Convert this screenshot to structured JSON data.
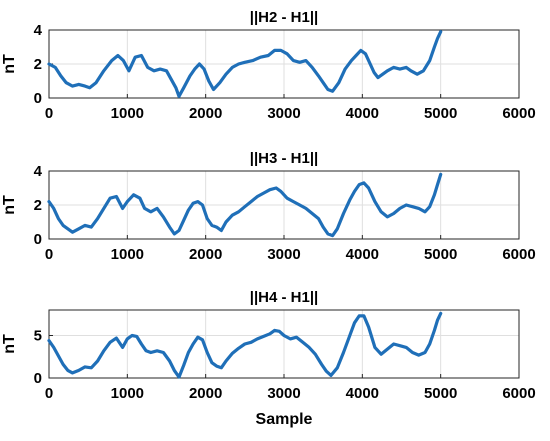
{
  "chart_data": [
    {
      "type": "line",
      "title": "||H2 - H1||",
      "xlabel": "",
      "ylabel": "nT",
      "xlim": [
        0,
        6000
      ],
      "ylim": [
        0,
        4
      ],
      "xticks": [
        0,
        1000,
        2000,
        3000,
        4000,
        5000,
        6000
      ],
      "yticks": [
        0,
        2,
        4
      ],
      "grid": true,
      "color": "#1f6fb8",
      "series": [
        {
          "x": [
            0,
            80,
            150,
            220,
            300,
            380,
            460,
            520,
            600,
            700,
            800,
            880,
            950,
            1020,
            1100,
            1180,
            1260,
            1340,
            1420,
            1500,
            1560,
            1620,
            1660,
            1720,
            1800,
            1860,
            1920,
            1980,
            2040,
            2100,
            2180,
            2260,
            2340,
            2420,
            2500,
            2600,
            2700,
            2800,
            2880,
            2960,
            3040,
            3120,
            3200,
            3280,
            3360,
            3440,
            3500,
            3560,
            3620,
            3700,
            3780,
            3860,
            3920,
            3980,
            4040,
            4100,
            4150,
            4200,
            4260,
            4320,
            4400,
            4480,
            4560,
            4620,
            4700,
            4780,
            4860,
            4920,
            4960,
            5000
          ],
          "y": [
            2.0,
            1.8,
            1.3,
            0.9,
            0.7,
            0.8,
            0.7,
            0.6,
            0.9,
            1.6,
            2.2,
            2.5,
            2.2,
            1.6,
            2.4,
            2.5,
            1.8,
            1.6,
            1.7,
            1.6,
            1.1,
            0.6,
            0.1,
            0.6,
            1.3,
            1.7,
            2.0,
            1.7,
            1.0,
            0.5,
            0.9,
            1.4,
            1.8,
            2.0,
            2.1,
            2.2,
            2.4,
            2.5,
            2.8,
            2.8,
            2.6,
            2.2,
            2.1,
            2.2,
            1.8,
            1.3,
            0.9,
            0.5,
            0.4,
            0.9,
            1.7,
            2.2,
            2.5,
            2.8,
            2.6,
            2.0,
            1.5,
            1.2,
            1.4,
            1.6,
            1.8,
            1.7,
            1.8,
            1.6,
            1.4,
            1.6,
            2.2,
            3.0,
            3.5,
            3.9
          ]
        }
      ]
    },
    {
      "type": "line",
      "title": "||H3 - H1||",
      "xlabel": "",
      "ylabel": "nT",
      "xlim": [
        0,
        6000
      ],
      "ylim": [
        0,
        4
      ],
      "xticks": [
        0,
        1000,
        2000,
        3000,
        4000,
        5000,
        6000
      ],
      "yticks": [
        0,
        2,
        4
      ],
      "grid": true,
      "color": "#1f6fb8",
      "series": [
        {
          "x": [
            0,
            60,
            120,
            180,
            240,
            300,
            380,
            460,
            540,
            620,
            700,
            780,
            860,
            940,
            1000,
            1080,
            1160,
            1220,
            1300,
            1380,
            1460,
            1540,
            1600,
            1660,
            1720,
            1780,
            1840,
            1900,
            1960,
            2020,
            2080,
            2140,
            2200,
            2260,
            2340,
            2420,
            2500,
            2580,
            2660,
            2740,
            2820,
            2900,
            2960,
            3040,
            3120,
            3200,
            3280,
            3360,
            3440,
            3500,
            3560,
            3620,
            3680,
            3760,
            3840,
            3900,
            3960,
            4020,
            4080,
            4160,
            4240,
            4320,
            4400,
            4480,
            4560,
            4640,
            4720,
            4800,
            4860,
            4920,
            4960,
            5000
          ],
          "y": [
            2.2,
            1.8,
            1.2,
            0.8,
            0.6,
            0.4,
            0.6,
            0.8,
            0.7,
            1.2,
            1.8,
            2.4,
            2.5,
            1.8,
            2.2,
            2.6,
            2.4,
            1.8,
            1.6,
            1.8,
            1.3,
            0.7,
            0.3,
            0.5,
            1.1,
            1.7,
            2.1,
            2.2,
            2.0,
            1.2,
            0.8,
            0.7,
            0.5,
            1.0,
            1.4,
            1.6,
            1.9,
            2.2,
            2.5,
            2.7,
            2.9,
            3.0,
            2.8,
            2.4,
            2.2,
            2.0,
            1.8,
            1.5,
            1.2,
            0.7,
            0.3,
            0.2,
            0.6,
            1.5,
            2.3,
            2.8,
            3.2,
            3.3,
            3.0,
            2.2,
            1.6,
            1.3,
            1.5,
            1.8,
            2.0,
            1.9,
            1.8,
            1.6,
            1.9,
            2.6,
            3.2,
            3.8
          ]
        }
      ]
    },
    {
      "type": "line",
      "title": "||H4 - H1||",
      "xlabel": "Sample",
      "ylabel": "nT",
      "xlim": [
        0,
        6000
      ],
      "ylim": [
        0,
        8
      ],
      "xticks": [
        0,
        1000,
        2000,
        3000,
        4000,
        5000,
        6000
      ],
      "yticks": [
        0,
        5
      ],
      "grid": true,
      "color": "#1f6fb8",
      "series": [
        {
          "x": [
            0,
            60,
            120,
            180,
            240,
            300,
            380,
            460,
            540,
            620,
            700,
            780,
            860,
            940,
            1000,
            1060,
            1120,
            1180,
            1240,
            1300,
            1380,
            1460,
            1540,
            1600,
            1660,
            1720,
            1780,
            1840,
            1900,
            1960,
            2020,
            2080,
            2140,
            2200,
            2260,
            2340,
            2420,
            2500,
            2580,
            2660,
            2740,
            2820,
            2880,
            2940,
            3000,
            3080,
            3160,
            3240,
            3320,
            3400,
            3480,
            3540,
            3600,
            3680,
            3760,
            3840,
            3900,
            3960,
            4020,
            4080,
            4160,
            4240,
            4320,
            4400,
            4480,
            4560,
            4640,
            4720,
            4800,
            4860,
            4920,
            4960,
            5000
          ],
          "y": [
            4.4,
            3.6,
            2.6,
            1.6,
            0.9,
            0.6,
            0.9,
            1.3,
            1.2,
            2.0,
            3.2,
            4.2,
            4.7,
            3.6,
            4.6,
            5.0,
            4.9,
            4.0,
            3.2,
            3.0,
            3.2,
            3.0,
            2.0,
            0.9,
            0.1,
            1.5,
            3.0,
            4.0,
            4.8,
            4.5,
            3.0,
            1.8,
            1.4,
            1.2,
            2.0,
            2.9,
            3.5,
            4.0,
            4.2,
            4.6,
            4.9,
            5.2,
            5.6,
            5.5,
            5.0,
            4.6,
            4.8,
            4.2,
            3.6,
            2.8,
            1.6,
            0.8,
            0.3,
            1.2,
            3.0,
            5.0,
            6.5,
            7.3,
            7.3,
            6.0,
            3.6,
            2.8,
            3.4,
            4.0,
            3.8,
            3.6,
            3.0,
            2.7,
            3.0,
            4.0,
            5.6,
            6.8,
            7.6
          ]
        }
      ]
    }
  ]
}
